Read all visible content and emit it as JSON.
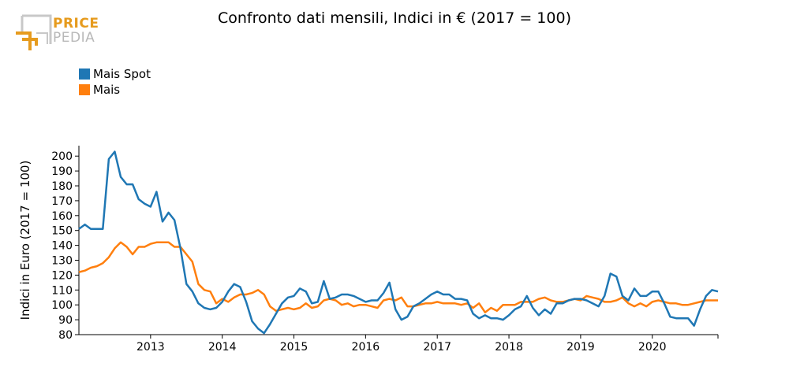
{
  "logo": {
    "line1": "PRICE",
    "line2": "PEDIA"
  },
  "colors": {
    "mais_spot": "#1f77b4",
    "mais": "#ff7f0e",
    "logo_orange": "#e69b1e",
    "logo_gray": "#b8b8b8"
  },
  "chart_data": {
    "type": "line",
    "title": "Confronto dati mensili, Indici in € (2017 = 100)",
    "ylabel": "Indici in Euro (2017 = 100)",
    "xlabel": "",
    "ylim": [
      80,
      207
    ],
    "yticks": [
      80,
      90,
      100,
      110,
      120,
      130,
      140,
      150,
      160,
      170,
      180,
      190,
      200
    ],
    "x_start": "2012-01",
    "x_end": "2020-12",
    "xticks": [
      "2013",
      "2014",
      "2015",
      "2016",
      "2017",
      "2018",
      "2019",
      "2020"
    ],
    "legend_position": "top-left",
    "grid": false,
    "series": [
      {
        "name": "Mais Spot",
        "values": [
          151,
          154,
          151,
          151,
          151,
          198,
          203,
          186,
          181,
          181,
          171,
          168,
          166,
          176,
          156,
          162,
          157,
          138,
          114,
          109,
          101,
          98,
          97,
          98,
          102,
          109,
          114,
          112,
          102,
          89,
          84,
          81,
          87,
          94,
          101,
          105,
          106,
          111,
          109,
          101,
          102,
          116,
          104,
          105,
          107,
          107,
          106,
          104,
          102,
          103,
          103,
          108,
          115,
          97,
          90,
          92,
          99,
          101,
          104,
          107,
          109,
          107,
          107,
          104,
          104,
          103,
          94,
          91,
          93,
          91,
          91,
          90,
          93,
          97,
          99,
          106,
          98,
          93,
          97,
          94,
          101,
          101,
          103,
          104,
          104,
          103,
          101,
          99,
          106,
          121,
          119,
          106,
          103,
          111,
          106,
          106,
          109,
          109,
          101,
          92,
          91,
          91,
          91,
          86,
          97,
          106,
          110,
          109
        ]
      },
      {
        "name": "Mais",
        "values": [
          122,
          123,
          125,
          126,
          128,
          132,
          138,
          142,
          139,
          134,
          139,
          139,
          141,
          142,
          142,
          142,
          139,
          139,
          134,
          129,
          114,
          110,
          109,
          101,
          104,
          102,
          105,
          107,
          107,
          108,
          110,
          107,
          99,
          96,
          97,
          98,
          97,
          98,
          101,
          98,
          99,
          103,
          104,
          103,
          100,
          101,
          99,
          100,
          100,
          99,
          98,
          103,
          104,
          103,
          105,
          99,
          99,
          100,
          101,
          101,
          102,
          101,
          101,
          101,
          100,
          101,
          98,
          101,
          95,
          98,
          96,
          100,
          100,
          100,
          102,
          102,
          102,
          104,
          105,
          103,
          102,
          102,
          103,
          104,
          103,
          106,
          105,
          104,
          102,
          102,
          103,
          105,
          101,
          99,
          101,
          99,
          102,
          103,
          102,
          101,
          101,
          100,
          100,
          101,
          102,
          103,
          103,
          103
        ]
      }
    ]
  }
}
